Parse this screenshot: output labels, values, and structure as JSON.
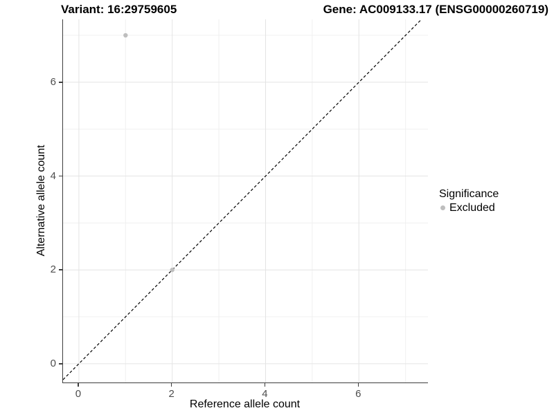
{
  "header": {
    "variant_title": "Variant: 16:29759605",
    "gene_title": "Gene: AC009133.17 (ENSG00000260719)"
  },
  "legend": {
    "title": "Significance",
    "position": "right",
    "items": [
      {
        "label": "Excluded",
        "marker": "circle-icon",
        "color": "#bebebe"
      }
    ]
  },
  "chart_data": {
    "type": "scatter",
    "xlabel": "Reference allele count",
    "ylabel": "Alternative allele count",
    "xlim": [
      -0.34,
      7.48
    ],
    "ylim": [
      -0.4,
      7.34
    ],
    "x_ticks": [
      0,
      2,
      4,
      6
    ],
    "y_ticks": [
      0,
      2,
      4,
      6
    ],
    "x_minor_gridlines": [
      1,
      3,
      5,
      7
    ],
    "y_minor_gridlines": [
      1,
      3,
      5,
      7
    ],
    "grid": "on",
    "series": [
      {
        "name": "Excluded",
        "points": [
          {
            "x": 1,
            "y": 7
          },
          {
            "x": 2,
            "y": 2
          }
        ]
      }
    ],
    "reference_line": {
      "slope": 1,
      "intercept": 0,
      "style": "dashed",
      "color": "#000000"
    },
    "point_radius": 3.2,
    "colors": {
      "point": "#bebebe",
      "grid_major": "#e4e4e4",
      "grid_minor": "#f0f0f0",
      "axis_line": "#3c3c3c",
      "tick_label": "#4d4d4d"
    }
  }
}
